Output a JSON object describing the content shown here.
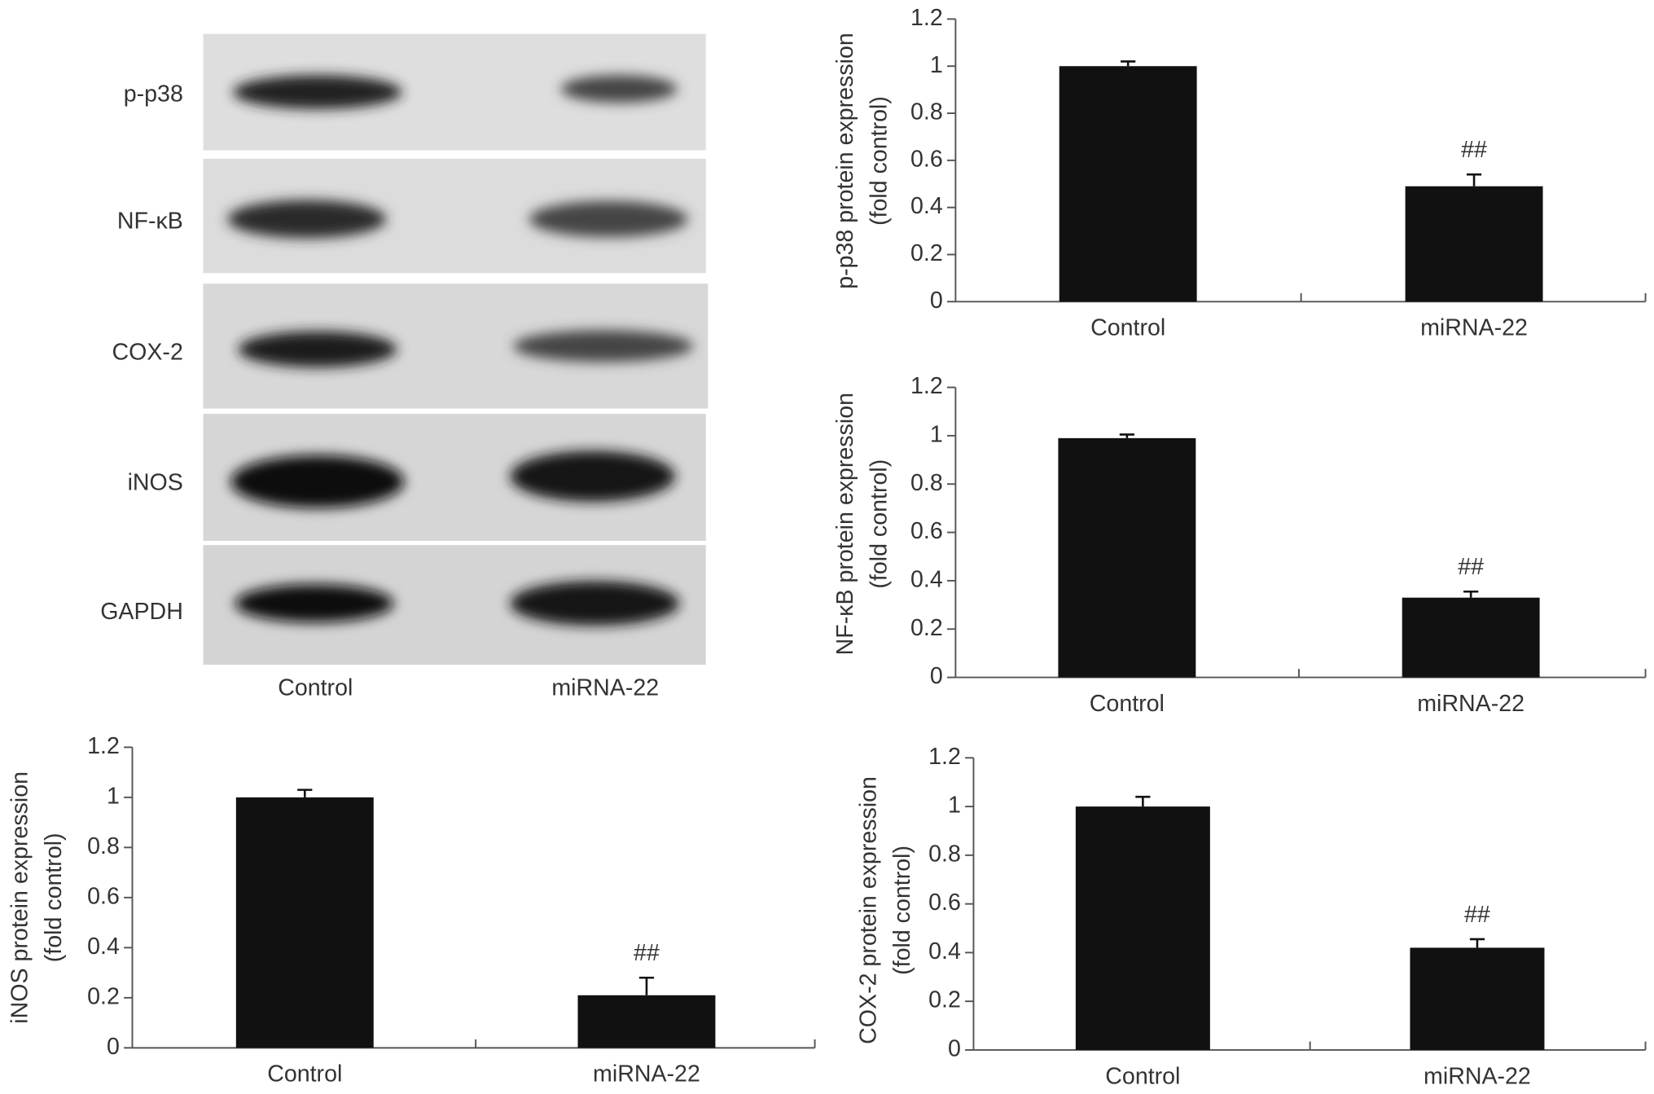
{
  "blot": {
    "rows": [
      "p-p38",
      "NF-κB",
      "COX-2",
      "iNOS",
      "GAPDH"
    ],
    "lanes": [
      "Control",
      "miRNA-22"
    ]
  },
  "chart_data": [
    {
      "type": "bar",
      "ylabel": [
        "p-p38 protein expression",
        "(fold control)"
      ],
      "categories": [
        "Control",
        "miRNA-22"
      ],
      "values": [
        1.0,
        0.49
      ],
      "errors": [
        0.02,
        0.05
      ],
      "color": "#111111",
      "ylim": [
        0,
        1.2
      ],
      "yticks": [
        0,
        0.2,
        0.4,
        0.6,
        0.8,
        1,
        1.2
      ],
      "annotations": [
        {
          "text": "##",
          "category": "miRNA-22"
        }
      ]
    },
    {
      "type": "bar",
      "ylabel": [
        "NF-κB protein expression",
        "(fold control)"
      ],
      "categories": [
        "Control",
        "miRNA-22"
      ],
      "values": [
        0.99,
        0.33
      ],
      "errors": [
        0.015,
        0.025
      ],
      "color": "#111111",
      "ylim": [
        0,
        1.2
      ],
      "yticks": [
        0,
        0.2,
        0.4,
        0.6,
        0.8,
        1,
        1.2
      ],
      "annotations": [
        {
          "text": "##",
          "category": "miRNA-22"
        }
      ]
    },
    {
      "type": "bar",
      "ylabel": [
        "COX-2 protein expression",
        "(fold control)"
      ],
      "categories": [
        "Control",
        "miRNA-22"
      ],
      "values": [
        1.0,
        0.42
      ],
      "errors": [
        0.04,
        0.035
      ],
      "color": "#111111",
      "ylim": [
        0,
        1.2
      ],
      "yticks": [
        0,
        0.2,
        0.4,
        0.6,
        0.8,
        1,
        1.2
      ],
      "annotations": [
        {
          "text": "##",
          "category": "miRNA-22"
        }
      ]
    },
    {
      "type": "bar",
      "ylabel": [
        "iNOS protein expression",
        "(fold control)"
      ],
      "categories": [
        "Control",
        "miRNA-22"
      ],
      "values": [
        1.0,
        0.21
      ],
      "errors": [
        0.03,
        0.07
      ],
      "color": "#111111",
      "ylim": [
        0,
        1.2
      ],
      "yticks": [
        0,
        0.2,
        0.4,
        0.6,
        0.8,
        1,
        1.2
      ],
      "annotations": [
        {
          "text": "##",
          "category": "miRNA-22"
        }
      ]
    }
  ]
}
